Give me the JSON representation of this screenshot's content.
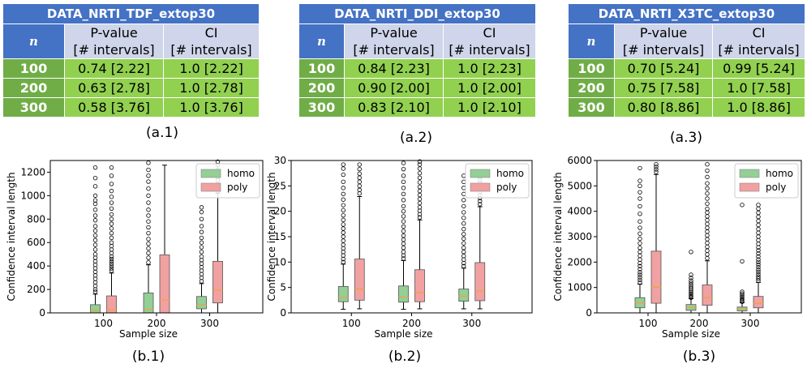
{
  "tables": [
    {
      "title": "DATA_NRTI_TDF_extop30",
      "n_header": "n",
      "col1_header": [
        "P-value",
        "[# intervals]"
      ],
      "col2_header": [
        "CI",
        "[# intervals]"
      ],
      "rows": [
        {
          "n": "100",
          "p": "0.74 [2.22]",
          "ci": "1.0 [2.22]"
        },
        {
          "n": "200",
          "p": "0.63 [2.78]",
          "ci": "1.0 [2.78]"
        },
        {
          "n": "300",
          "p": "0.58 [3.76]",
          "ci": "1.0 [3.76]"
        }
      ],
      "caption": "(a.1)"
    },
    {
      "title": "DATA_NRTI_DDI_extop30",
      "n_header": "n",
      "col1_header": [
        "P-value",
        "[# intervals]"
      ],
      "col2_header": [
        "CI",
        "[# intervals]"
      ],
      "rows": [
        {
          "n": "100",
          "p": "0.84 [2.23]",
          "ci": "1.0 [2.23]"
        },
        {
          "n": "200",
          "p": "0.90 [2.00]",
          "ci": "1.0 [2.00]"
        },
        {
          "n": "300",
          "p": "0.83 [2.10]",
          "ci": "1.0 [2.10]"
        }
      ],
      "caption": "(a.2)"
    },
    {
      "title": "DATA_NRTI_X3TC_extop30",
      "n_header": "n",
      "col1_header": [
        "P-value",
        "[# intervals]"
      ],
      "col2_header": [
        "CI",
        "[# intervals]"
      ],
      "rows": [
        {
          "n": "100",
          "p": "0.70 [5.24]",
          "ci": "0.99 [5.24]"
        },
        {
          "n": "200",
          "p": "0.75 [7.58]",
          "ci": "1.0 [7.58]"
        },
        {
          "n": "300",
          "p": "0.80 [8.86]",
          "ci": "1.0 [8.86]"
        }
      ],
      "caption": "(a.3)"
    }
  ],
  "colors": {
    "title_bg": "#4472c4",
    "header_bg": "#cfd5ea",
    "n_cell_bg": "#70ad47",
    "data_cell_bg": "#92d050",
    "homo": "#93cf96",
    "poly": "#f1a1a1",
    "median": "#f59f3c"
  },
  "chart_data": [
    {
      "type": "box",
      "caption": "(b.1)",
      "xlabel": "Sample size",
      "ylabel": "Confidence interval length",
      "categories": [
        "100",
        "200",
        "300"
      ],
      "yticks": [
        0,
        200,
        400,
        600,
        800,
        1000,
        1200
      ],
      "ylim": [
        0,
        1300
      ],
      "legend": [
        "homo",
        "poly"
      ],
      "legend_position": "top-right",
      "series": [
        {
          "name": "homo",
          "boxes": [
            {
              "q1": 0,
              "median": 20,
              "q3": 70,
              "whisker_low": 0,
              "whisker_high": 160,
              "fliers": [
                180,
                200,
                230,
                260,
                290,
                320,
                350,
                380,
                410,
                440,
                470,
                500,
                540,
                580,
                620,
                660,
                700,
                740,
                790,
                830,
                880,
                930,
                960,
                1000,
                1080,
                1150,
                1240
              ]
            },
            {
              "q1": 0,
              "median": 30,
              "q3": 170,
              "whisker_low": 0,
              "whisker_high": 410,
              "fliers": [
                430,
                470,
                510,
                550,
                590,
                630,
                680,
                730,
                780,
                830,
                880,
                940,
                1000,
                1060,
                1120,
                1170,
                1220,
                1280
              ]
            },
            {
              "q1": 35,
              "median": 70,
              "q3": 140,
              "whisker_low": 0,
              "whisker_high": 250,
              "fliers": [
                270,
                300,
                330,
                360,
                390,
                420,
                450,
                480,
                520,
                560,
                600,
                640,
                690,
                740,
                800,
                860,
                900
              ]
            }
          ]
        },
        {
          "name": "poly",
          "boxes": [
            {
              "q1": 0,
              "median": 25,
              "q3": 145,
              "whisker_low": 0,
              "whisker_high": 340,
              "fliers": [
                360,
                380,
                400,
                420,
                440,
                460,
                480,
                510,
                540,
                570,
                600,
                640,
                680,
                720,
                760,
                800,
                840,
                890,
                940,
                990,
                1040,
                1100,
                1170,
                1240
              ]
            },
            {
              "q1": 0,
              "median": 110,
              "q3": 495,
              "whisker_low": 0,
              "whisker_high": 1260
            },
            {
              "q1": 85,
              "median": 195,
              "q3": 440,
              "whisker_low": 0,
              "whisker_high": 1020,
              "fliers": [
                1040,
                1070,
                1100,
                1130,
                1160,
                1190,
                1220,
                1260,
                1290
              ]
            }
          ]
        }
      ]
    },
    {
      "type": "box",
      "caption": "(b.2)",
      "xlabel": "Sample size",
      "ylabel": "Confidence interval length",
      "categories": [
        "100",
        "200",
        "300"
      ],
      "yticks": [
        0,
        5,
        10,
        15,
        20,
        25,
        30
      ],
      "ylim": [
        0,
        30
      ],
      "legend": [
        "homo",
        "poly"
      ],
      "legend_position": "top-right",
      "series": [
        {
          "name": "homo",
          "boxes": [
            {
              "q1": 2.2,
              "median": 3.0,
              "q3": 5.2,
              "whisker_low": 0.7,
              "whisker_high": 9.6,
              "fliers": [
                10,
                10.6,
                11.3,
                12,
                12.7,
                13.4,
                14.2,
                15,
                15.8,
                16.6,
                17.4,
                18.3,
                19.2,
                20.2,
                21.2,
                22.3,
                23.4,
                24.6,
                25.8,
                27.2,
                28.4,
                29.2
              ]
            },
            {
              "q1": 2.1,
              "median": 3.1,
              "q3": 5.3,
              "whisker_low": 0.7,
              "whisker_high": 10.3,
              "fliers": [
                10.7,
                11.3,
                12,
                12.8,
                13.6,
                14.4,
                15.2,
                16.1,
                17,
                18,
                19,
                20,
                21,
                22.2,
                23.4,
                24.6,
                25.8,
                27,
                28.3,
                29.5
              ]
            },
            {
              "q1": 2.3,
              "median": 3.3,
              "q3": 4.7,
              "whisker_low": 0.8,
              "whisker_high": 8.8,
              "fliers": [
                9.2,
                9.8,
                10.5,
                11.2,
                12,
                12.8,
                13.7,
                14.6,
                15.5,
                16.5,
                17.6,
                18.7,
                19.8,
                21,
                22.2,
                23.4,
                24.6,
                25.8,
                27
              ]
            }
          ]
        },
        {
          "name": "poly",
          "boxes": [
            {
              "q1": 2.5,
              "median": 4.7,
              "q3": 10.6,
              "whisker_low": 0.8,
              "whisker_high": 22.9,
              "fliers": [
                23.5,
                24.2,
                25,
                25.8,
                26.6,
                27.4,
                28.3,
                29.2
              ]
            },
            {
              "q1": 2.2,
              "median": 4.0,
              "q3": 8.5,
              "whisker_low": 0.8,
              "whisker_high": 18.3,
              "fliers": [
                18.8,
                19.4,
                20.1,
                20.8,
                21.6,
                22.4,
                23.2,
                24,
                24.8,
                25.7,
                26.6,
                27.5,
                28.4,
                29.2,
                29.8
              ]
            },
            {
              "q1": 2.4,
              "median": 4.3,
              "q3": 9.9,
              "whisker_low": 0.8,
              "whisker_high": 20.9,
              "fliers": [
                21.4,
                22,
                22.6,
                23.2,
                23.8,
                24.4,
                25,
                25.6,
                26.2,
                26.8,
                27.4
              ]
            }
          ]
        }
      ]
    },
    {
      "type": "box",
      "caption": "(b.3)",
      "xlabel": "Sample size",
      "ylabel": "Confidence interval length",
      "categories": [
        "100",
        "200",
        "300"
      ],
      "yticks": [
        0,
        1000,
        2000,
        3000,
        4000,
        5000,
        6000
      ],
      "ylim": [
        0,
        6000
      ],
      "legend": [
        "homo",
        "poly"
      ],
      "legend_position": "top-right",
      "series": [
        {
          "name": "homo",
          "boxes": [
            {
              "q1": 200,
              "median": 390,
              "q3": 600,
              "whisker_low": 0,
              "whisker_high": 1130,
              "fliers": [
                1200,
                1300,
                1400,
                1500,
                1600,
                1720,
                1840,
                1960,
                2100,
                2250,
                2400,
                2560,
                2740,
                2920,
                3120,
                3350,
                3600,
                3900,
                4200,
                4500,
                4750,
                5000,
                5200,
                5700
              ]
            },
            {
              "q1": 100,
              "median": 220,
              "q3": 330,
              "whisker_low": 0,
              "whisker_high": 560,
              "fliers": [
                600,
                650,
                700,
                760,
                820,
                880,
                950,
                1020,
                1100,
                1180,
                1270,
                1380,
                1500,
                2400
              ]
            },
            {
              "q1": 80,
              "median": 160,
              "q3": 230,
              "whisker_low": 0,
              "whisker_high": 400,
              "fliers": [
                440,
                480,
                530,
                580,
                640,
                700,
                760,
                830,
                2030,
                4250
              ]
            }
          ]
        },
        {
          "name": "poly",
          "boxes": [
            {
              "q1": 380,
              "median": 1010,
              "q3": 2430,
              "whisker_low": 0,
              "whisker_high": 5450,
              "fliers": [
                5550,
                5650,
                5750,
                5850
              ]
            },
            {
              "q1": 300,
              "median": 600,
              "q3": 1100,
              "whisker_low": 0,
              "whisker_high": 2050,
              "fliers": [
                2150,
                2300,
                2450,
                2600,
                2750,
                2900,
                3050,
                3200,
                3350,
                3500,
                3650,
                3800,
                3950,
                4100,
                4300,
                4500,
                4700,
                4900,
                5100,
                5350,
                5600,
                5850
              ]
            },
            {
              "q1": 200,
              "median": 380,
              "q3": 650,
              "whisker_low": 0,
              "whisker_high": 1200,
              "fliers": [
                1270,
                1350,
                1430,
                1520,
                1610,
                1700,
                1800,
                1900,
                2000,
                2100,
                2220,
                2340,
                2460,
                2580,
                2720,
                2860,
                3000,
                3150,
                3300,
                3460,
                3620,
                3780,
                3940,
                4100,
                4250
              ]
            }
          ]
        }
      ]
    }
  ]
}
